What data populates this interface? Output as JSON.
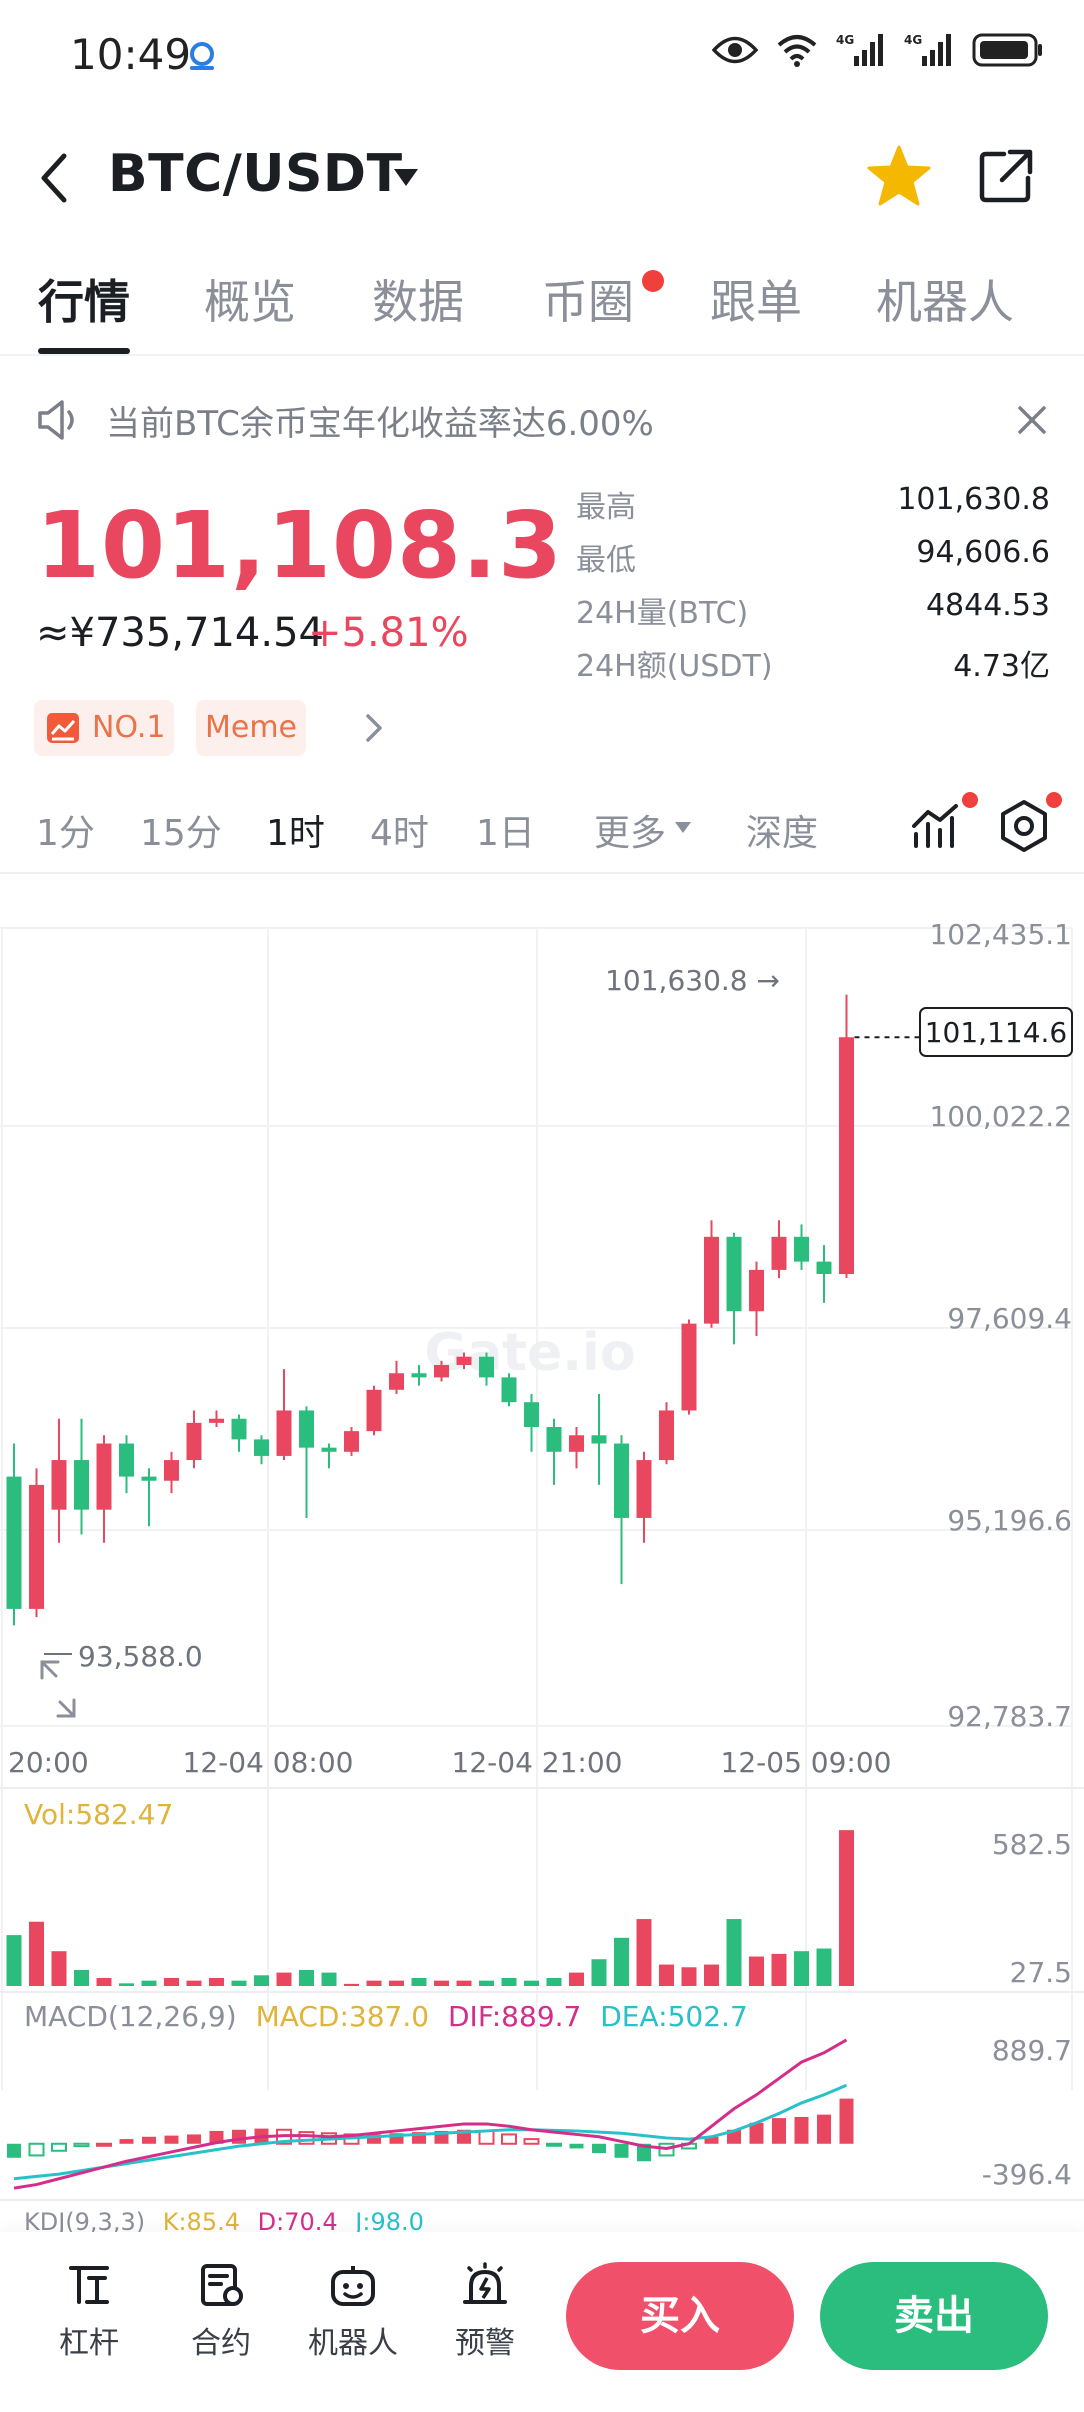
{
  "status_bar": {
    "time": "10:49",
    "network_1": "4G",
    "network_2": "4G"
  },
  "header": {
    "pair": "BTC/USDT"
  },
  "tabs": [
    {
      "label": "行情",
      "active": true
    },
    {
      "label": "概览"
    },
    {
      "label": "数据"
    },
    {
      "label": "币圈",
      "has_dot": true
    },
    {
      "label": "跟单"
    },
    {
      "label": "机器人"
    }
  ],
  "notice": {
    "text": "当前BTC余币宝年化收益率达6.00%"
  },
  "ticker": {
    "price": "101,108.3",
    "cny": "≈¥735,714.54",
    "change": "+5.81%",
    "stats": [
      {
        "label": "最高",
        "value": "101,630.8"
      },
      {
        "label": "最低",
        "value": "94,606.6"
      },
      {
        "label": "24H量(BTC)",
        "value": "4844.53"
      },
      {
        "label": "24H额(USDT)",
        "value": "4.73亿"
      }
    ],
    "tags": [
      "NO.1",
      "Meme"
    ]
  },
  "intervals": [
    {
      "label": "1分"
    },
    {
      "label": "15分"
    },
    {
      "label": "1时",
      "active": true
    },
    {
      "label": "4时"
    },
    {
      "label": "1日"
    },
    {
      "label": "更多"
    },
    {
      "label": "深度"
    }
  ],
  "colors": {
    "up": "#e9475f",
    "down": "#2bbd7e",
    "macd": "#e0b43a",
    "dif": "#d42e8a",
    "dea": "#27c1c9",
    "vol": "#e0b43a"
  },
  "chart_data": {
    "type": "candlestick",
    "price_axis_labels": [
      "102,435.1",
      "100,022.2",
      "97,609.4",
      "95,196.6",
      "92,783.7"
    ],
    "price_axis": {
      "min": 92783.7,
      "max": 102435.1
    },
    "x_labels": [
      "20:00",
      "12-04 08:00",
      "12-04 21:00",
      "12-05 09:00"
    ],
    "high_marker": "101,630.8",
    "low_marker": "93,588.0",
    "last_price_tag": "101,114.6",
    "watermark": "Gate.io",
    "candles": [
      {
        "o": 95800,
        "h": 96200,
        "l": 94000,
        "c": 94200
      },
      {
        "o": 94200,
        "h": 95900,
        "l": 94100,
        "c": 95700
      },
      {
        "o": 95400,
        "h": 96500,
        "l": 95000,
        "c": 96000
      },
      {
        "o": 96000,
        "h": 96500,
        "l": 95100,
        "c": 95400
      },
      {
        "o": 95400,
        "h": 96300,
        "l": 95000,
        "c": 96200
      },
      {
        "o": 96200,
        "h": 96300,
        "l": 95600,
        "c": 95800
      },
      {
        "o": 95800,
        "h": 95900,
        "l": 95200,
        "c": 95750
      },
      {
        "o": 95750,
        "h": 96100,
        "l": 95600,
        "c": 96000
      },
      {
        "o": 96000,
        "h": 96600,
        "l": 95900,
        "c": 96450
      },
      {
        "o": 96450,
        "h": 96600,
        "l": 96400,
        "c": 96500
      },
      {
        "o": 96500,
        "h": 96550,
        "l": 96100,
        "c": 96250
      },
      {
        "o": 96250,
        "h": 96300,
        "l": 95950,
        "c": 96050
      },
      {
        "o": 96050,
        "h": 97100,
        "l": 96000,
        "c": 96600
      },
      {
        "o": 96600,
        "h": 96650,
        "l": 95300,
        "c": 96150
      },
      {
        "o": 96150,
        "h": 96200,
        "l": 95900,
        "c": 96100
      },
      {
        "o": 96100,
        "h": 96400,
        "l": 96050,
        "c": 96350
      },
      {
        "o": 96350,
        "h": 96900,
        "l": 96300,
        "c": 96850
      },
      {
        "o": 96850,
        "h": 97200,
        "l": 96800,
        "c": 97050
      },
      {
        "o": 97050,
        "h": 97150,
        "l": 96900,
        "c": 97000
      },
      {
        "o": 97000,
        "h": 97200,
        "l": 96950,
        "c": 97150
      },
      {
        "o": 97150,
        "h": 97300,
        "l": 97100,
        "c": 97250
      },
      {
        "o": 97250,
        "h": 97300,
        "l": 96900,
        "c": 97000
      },
      {
        "o": 97000,
        "h": 97050,
        "l": 96650,
        "c": 96700
      },
      {
        "o": 96700,
        "h": 96800,
        "l": 96100,
        "c": 96400
      },
      {
        "o": 96400,
        "h": 96500,
        "l": 95700,
        "c": 96100
      },
      {
        "o": 96100,
        "h": 96400,
        "l": 95900,
        "c": 96300
      },
      {
        "o": 96300,
        "h": 96800,
        "l": 95700,
        "c": 96200
      },
      {
        "o": 96200,
        "h": 96300,
        "l": 94500,
        "c": 95300
      },
      {
        "o": 95300,
        "h": 96100,
        "l": 95000,
        "c": 96000
      },
      {
        "o": 96000,
        "h": 96700,
        "l": 95950,
        "c": 96600
      },
      {
        "o": 96600,
        "h": 97700,
        "l": 96550,
        "c": 97650
      },
      {
        "o": 97650,
        "h": 98900,
        "l": 97600,
        "c": 98700
      },
      {
        "o": 98700,
        "h": 98750,
        "l": 97400,
        "c": 97800
      },
      {
        "o": 97800,
        "h": 98400,
        "l": 97500,
        "c": 98300
      },
      {
        "o": 98300,
        "h": 98900,
        "l": 98200,
        "c": 98700
      },
      {
        "o": 98700,
        "h": 98850,
        "l": 98300,
        "c": 98400
      },
      {
        "o": 98400,
        "h": 98600,
        "l": 97900,
        "c": 98250
      },
      {
        "o": 98250,
        "h": 101630,
        "l": 98200,
        "c": 101114
      }
    ],
    "volume": {
      "label": "Vol:582.47",
      "axis_labels": [
        "582.5",
        "27.5"
      ],
      "max": 582.5,
      "values": [
        190,
        240,
        130,
        60,
        30,
        10,
        20,
        30,
        20,
        30,
        20,
        40,
        50,
        60,
        50,
        8,
        20,
        20,
        30,
        20,
        20,
        20,
        30,
        20,
        30,
        50,
        100,
        180,
        250,
        80,
        70,
        80,
        250,
        110,
        120,
        130,
        140,
        582
      ]
    },
    "macd": {
      "label": "MACD(12,26,9)",
      "macd_label": "MACD:387.0",
      "dif_label": "DIF:889.7",
      "dea_label": "DEA:502.7",
      "axis_labels": [
        "889.7",
        "-396.4"
      ],
      "max": 889.7,
      "min": -396.4,
      "hist": [
        -120,
        -100,
        -60,
        -20,
        0,
        40,
        60,
        70,
        80,
        110,
        120,
        130,
        120,
        100,
        90,
        80,
        80,
        90,
        100,
        110,
        120,
        110,
        80,
        40,
        -10,
        -40,
        -80,
        -120,
        -150,
        -100,
        -40,
        60,
        120,
        180,
        220,
        230,
        250,
        387
      ],
      "dif": [
        -380,
        -350,
        -300,
        -250,
        -200,
        -150,
        -110,
        -70,
        -30,
        10,
        40,
        60,
        70,
        70,
        60,
        70,
        90,
        110,
        130,
        150,
        170,
        170,
        150,
        120,
        100,
        80,
        60,
        20,
        -20,
        -40,
        0,
        150,
        300,
        420,
        560,
        700,
        780,
        890
      ],
      "dea": [
        -300,
        -280,
        -260,
        -230,
        -200,
        -170,
        -140,
        -110,
        -80,
        -50,
        -20,
        0,
        20,
        30,
        40,
        50,
        60,
        70,
        80,
        90,
        100,
        110,
        120,
        120,
        115,
        110,
        100,
        90,
        70,
        50,
        40,
        60,
        110,
        180,
        260,
        350,
        420,
        502
      ]
    },
    "kdj": {
      "label": "KDJ(9,3,3)",
      "k_label": "K:85.4",
      "d_label": "D:70.4",
      "j_label": "J:98.0"
    }
  },
  "bottom_nav": [
    {
      "label": "杠杆",
      "icon": "leverage-icon"
    },
    {
      "label": "合约",
      "icon": "contract-icon"
    },
    {
      "label": "机器人",
      "icon": "robot-icon"
    },
    {
      "label": "预警",
      "icon": "alarm-icon"
    }
  ],
  "actions": {
    "buy": "买入",
    "sell": "卖出"
  }
}
